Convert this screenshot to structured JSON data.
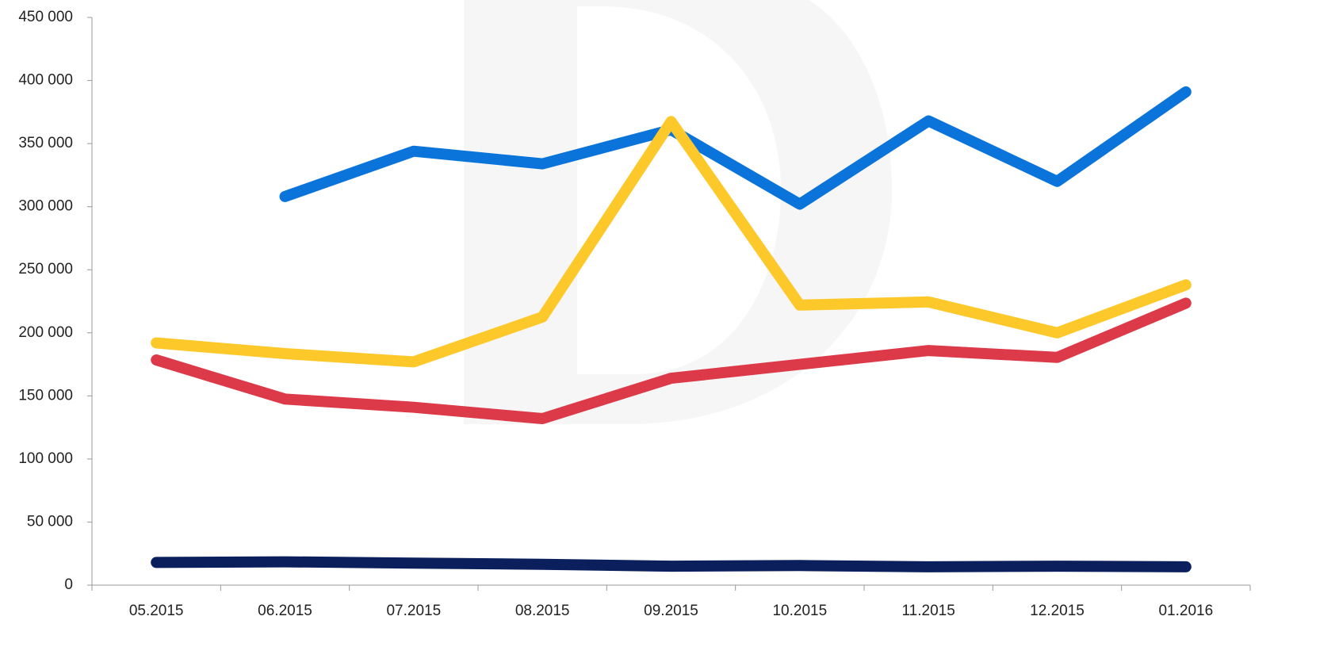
{
  "chart_data": {
    "type": "line",
    "categories": [
      "05.2015",
      "06.2015",
      "07.2015",
      "08.2015",
      "09.2015",
      "10.2015",
      "11.2015",
      "12.2015",
      "01.2016"
    ],
    "series": [
      {
        "color": "#0a74da",
        "values": [
          null,
          308000,
          344000,
          334000,
          361000,
          302000,
          368000,
          320000,
          391000
        ]
      },
      {
        "color": "#fdc82a",
        "values": [
          192000,
          183500,
          177000,
          212500,
          367500,
          222000,
          224500,
          200000,
          238000
        ]
      },
      {
        "color": "#dc3a48",
        "values": [
          178500,
          147500,
          141000,
          132000,
          164000,
          175000,
          186000,
          180500,
          223500
        ]
      },
      {
        "color": "#0a1f5c",
        "values": [
          18000,
          18500,
          17500,
          16500,
          15000,
          15500,
          14500,
          15000,
          14500
        ]
      }
    ],
    "ylim": [
      0,
      450000
    ],
    "yticks": [
      0,
      {
        "value": 50000,
        "label": "50 000"
      },
      {
        "value": 100000,
        "label": "100 000"
      },
      {
        "value": 150000,
        "label": "150 000"
      },
      {
        "value": 200000,
        "label": "200 000"
      },
      {
        "value": 250000,
        "label": "250 000"
      },
      {
        "value": 300000,
        "label": "300 000"
      },
      {
        "value": 350000,
        "label": "350 000"
      },
      {
        "value": 400000,
        "label": "400 000"
      },
      {
        "value": 450000,
        "label": "450 000"
      }
    ],
    "grid": false
  }
}
